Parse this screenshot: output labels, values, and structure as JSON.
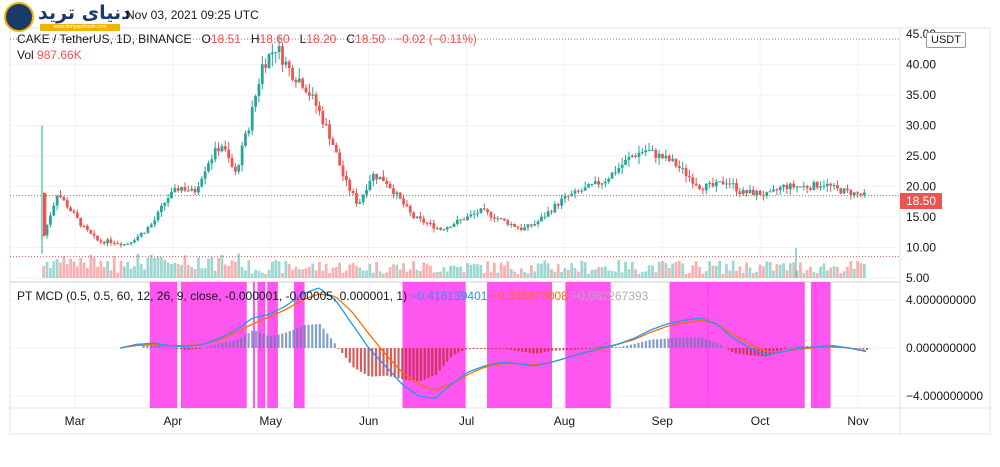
{
  "header": {
    "logo_text": "دنیای ترید",
    "logo_sub": "www.donyayetrade.com",
    "timestamp": "Nov 03, 2021 09:25 UTC"
  },
  "legend": {
    "symbol": "CAKE / TetherUS, 1D, BINANCE",
    "o_label": "O",
    "o": "18.51",
    "h_label": "H",
    "h": "18.60",
    "l_label": "L",
    "l": "18.20",
    "c_label": "C",
    "c": "18.50",
    "change": "−0.02 (−0.11%)"
  },
  "volume": {
    "label": "Vol",
    "value": "987.66K"
  },
  "currency_badge": "USDT",
  "last_price_tag": "18.50",
  "price_axis": [
    "45.00",
    "40.00",
    "35.00",
    "30.00",
    "25.00",
    "20.00",
    "15.00",
    "10.00",
    "5.00"
  ],
  "macd_axis": [
    "4.000000000",
    "0.000000000",
    "−4.000000000"
  ],
  "time_axis": [
    "Mar",
    "Apr",
    "May",
    "Jun",
    "Jul",
    "Aug",
    "Sep",
    "Oct",
    "Nov"
  ],
  "macd_legend": {
    "name": "PT MCD (0.5, 0.5, 60, 12, 26, 9, close, -0.000001, -0.00005, 0.000001, 1)",
    "v1": "−0.416139401",
    "v2": "−0.333873008",
    "v3": "−0.082267393"
  },
  "colors": {
    "up": "#26a69a",
    "down": "#ef5350",
    "macd": "#2196f3",
    "signal": "#ff6d00",
    "band": "#ff44ee",
    "grid": "#f0f3fa"
  },
  "chart_data": {
    "type": "candlestick",
    "price_range": [
      5,
      46
    ],
    "macd_range": [
      -5,
      5.5
    ],
    "x_months": [
      "Mar",
      "Apr",
      "May",
      "Jun",
      "Jul",
      "Aug",
      "Sep",
      "Oct",
      "Nov"
    ],
    "close_path": [
      12,
      19,
      16,
      13,
      11,
      11,
      10.5,
      12,
      14,
      18,
      20,
      19,
      24,
      27,
      22,
      30,
      40,
      43,
      39,
      37,
      33,
      28,
      21,
      17,
      22,
      21,
      18,
      15,
      14,
      13,
      14,
      15,
      16,
      15,
      14,
      13,
      14,
      16,
      18,
      19,
      20,
      21,
      23,
      25,
      26,
      25,
      24,
      22,
      20,
      20,
      21,
      19,
      19,
      18.5,
      20,
      20,
      20,
      20.5,
      19.5,
      19,
      18.5
    ],
    "macd_path": [
      0,
      0.3,
      0.4,
      0.2,
      0.1,
      0.3,
      0.8,
      1.5,
      2.5,
      2.8,
      3.5,
      4.5,
      5,
      4,
      2,
      0,
      -1.5,
      -3,
      -4,
      -4.2,
      -3,
      -2,
      -1.5,
      -1.2,
      -1.3,
      -1.5,
      -1.2,
      -0.8,
      -0.4,
      0,
      0.3,
      0.8,
      1.5,
      2,
      2.3,
      2.5,
      2,
      0.8,
      0,
      -0.6,
      -0.3,
      0,
      0.1,
      0.2,
      0,
      -0.3
    ],
    "signal_path": [
      0,
      0.2,
      0.3,
      0.2,
      0.2,
      0.3,
      0.7,
      1.3,
      2,
      2.6,
      3.2,
      4,
      4.5,
      4.3,
      3,
      1.2,
      -0.5,
      -2,
      -3,
      -3.5,
      -3,
      -2.2,
      -1.6,
      -1.3,
      -1.3,
      -1.4,
      -1.2,
      -0.8,
      -0.4,
      -0.1,
      0.3,
      0.7,
      1.3,
      1.8,
      2.1,
      2.3,
      2.0,
      1.1,
      0.3,
      -0.3,
      -0.3,
      -0.1,
      0.05,
      0.1,
      0,
      -0.25
    ],
    "bands_x_frac": [
      [
        0.157,
        0.188
      ],
      [
        0.192,
        0.266
      ],
      [
        0.273,
        0.275
      ],
      [
        0.278,
        0.287
      ],
      [
        0.289,
        0.301
      ],
      [
        0.319,
        0.331
      ],
      [
        0.441,
        0.512
      ],
      [
        0.536,
        0.609
      ],
      [
        0.624,
        0.675
      ],
      [
        0.741,
        0.785
      ],
      [
        0.783,
        0.893
      ],
      [
        0.904,
        0.904
      ],
      [
        0.9,
        0.922
      ]
    ]
  }
}
